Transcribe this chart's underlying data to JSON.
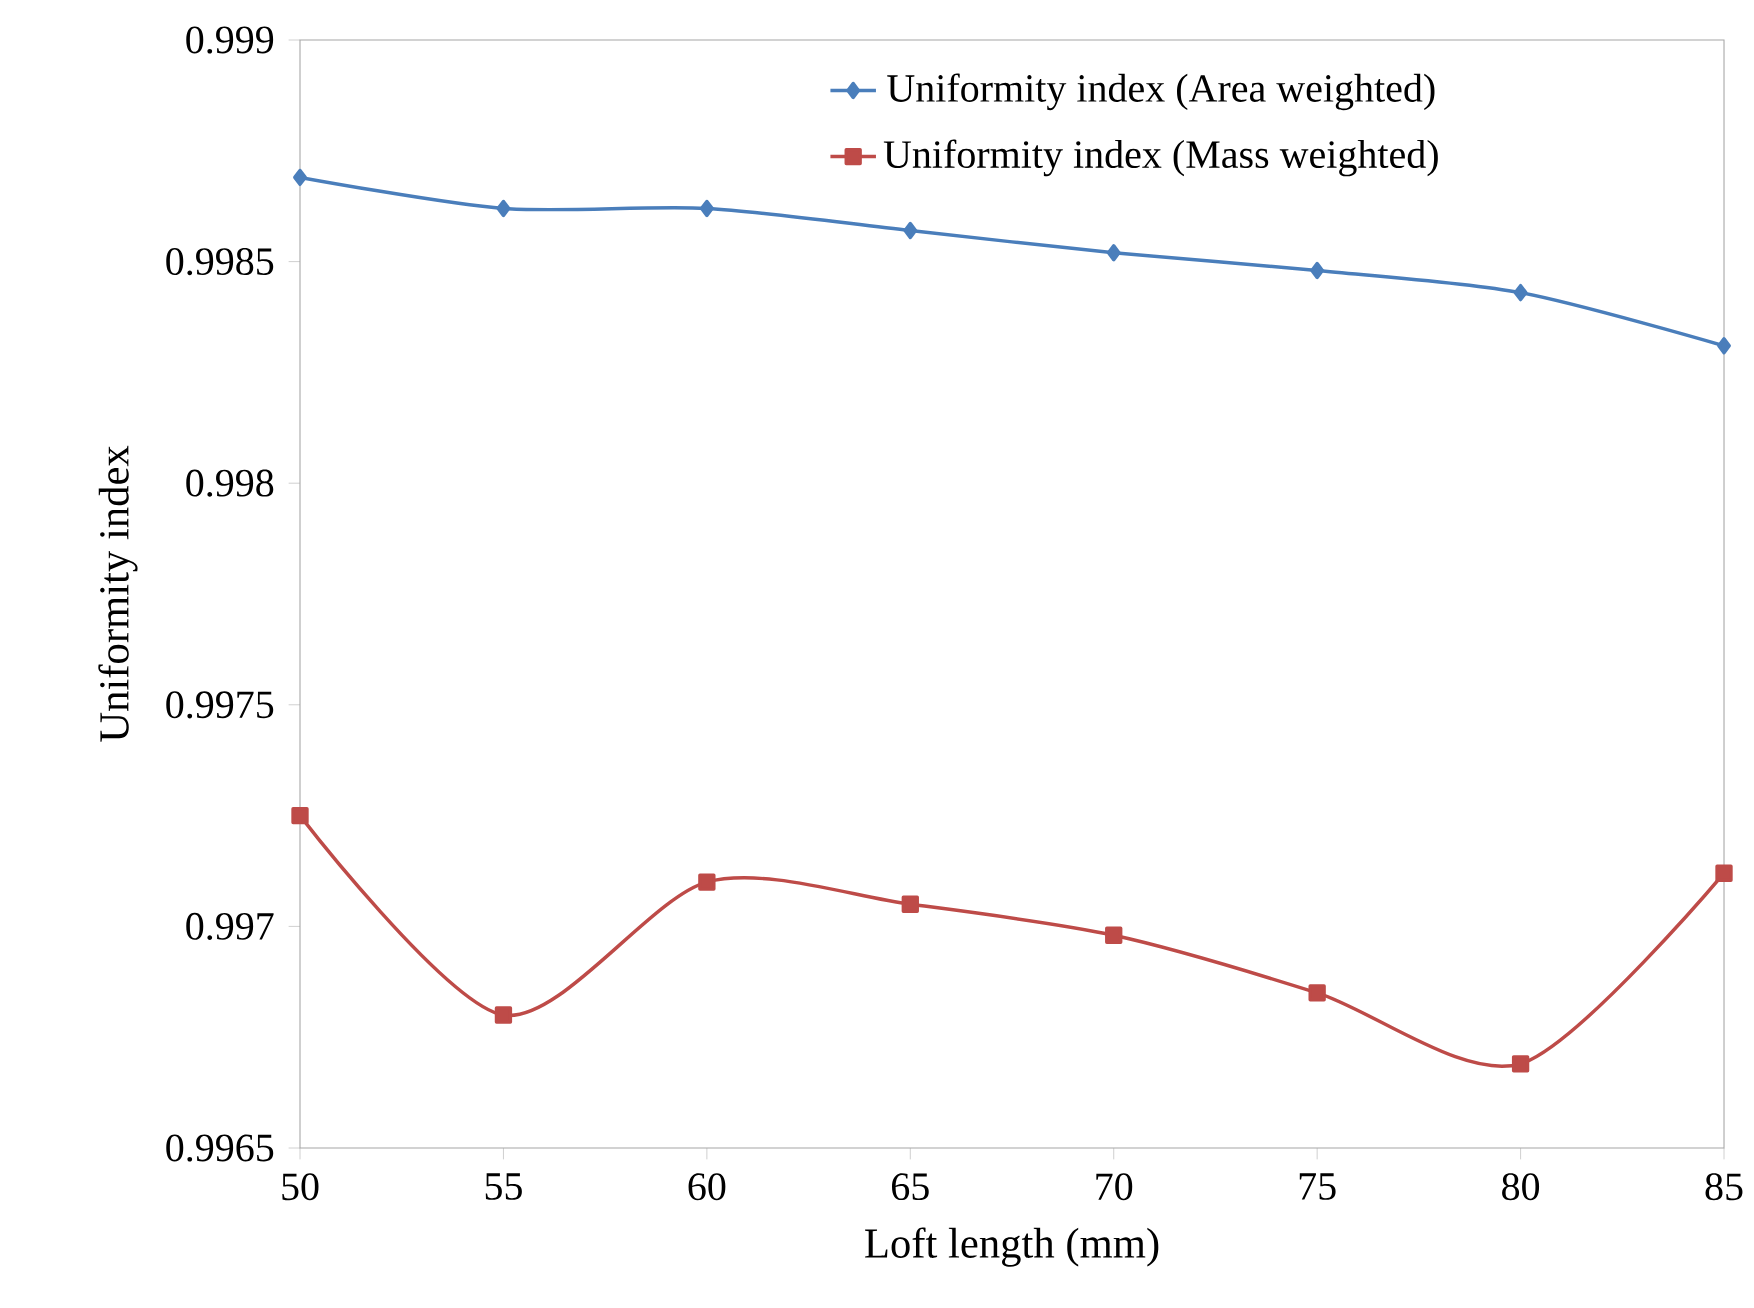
{
  "chart_data": {
    "type": "line",
    "xlabel": "Loft length (mm)",
    "ylabel": "Uniformity index",
    "x": [
      50,
      55,
      60,
      65,
      70,
      75,
      80,
      85
    ],
    "series": [
      {
        "name": "Uniformity index (Area weighted)",
        "color": "#4a7ebb",
        "marker": "diamond",
        "values": [
          0.99869,
          0.99862,
          0.99862,
          0.99857,
          0.99852,
          0.99848,
          0.99843,
          0.99831
        ]
      },
      {
        "name": "Uniformity index (Mass weighted)",
        "color": "#be4b48",
        "marker": "square",
        "values": [
          0.99725,
          0.9968,
          0.9971,
          0.99705,
          0.99698,
          0.99685,
          0.99669,
          0.99712
        ]
      }
    ],
    "xlim": [
      50,
      85
    ],
    "xticks": [
      50,
      55,
      60,
      65,
      70,
      75,
      80,
      85
    ],
    "ylim": [
      0.9965,
      0.999
    ],
    "yticks": [
      0.9965,
      0.997,
      0.9975,
      0.998,
      0.9985,
      0.999
    ],
    "grid": false,
    "legend": "top right",
    "line_style": "solid"
  }
}
